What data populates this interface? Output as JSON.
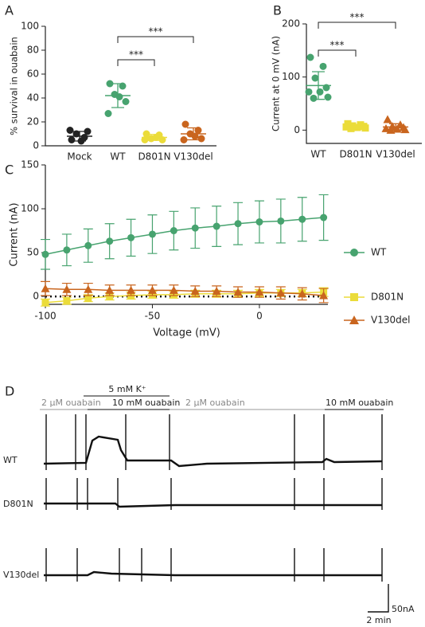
{
  "chart_data": [
    {
      "type": "dot",
      "panel": "A",
      "ylabel": "% survival in ouabain",
      "categories": [
        "Mock",
        "WT",
        "D801N",
        "V130del"
      ],
      "colors": [
        "#222222",
        "#47a36f",
        "#ebdc3a",
        "#c9651e"
      ],
      "markers": [
        "circle",
        "circle",
        "circle",
        "circle"
      ],
      "points": [
        [
          5,
          7,
          10,
          12,
          13,
          4
        ],
        [
          52,
          50,
          43,
          37,
          27,
          41
        ],
        [
          10,
          9,
          6,
          5,
          5,
          7
        ],
        [
          18,
          13,
          10,
          6,
          5,
          8
        ]
      ],
      "means": [
        8,
        42,
        7,
        10
      ],
      "errors": [
        4,
        10,
        2.5,
        5
      ],
      "comparisons": [
        {
          "from": "WT",
          "to": "D801N",
          "label": "***"
        },
        {
          "from": "WT",
          "to": "V130del",
          "label": "***"
        }
      ],
      "ylim": [
        0,
        100
      ],
      "yticks": [
        0,
        20,
        40,
        60,
        80,
        100
      ]
    },
    {
      "type": "dot",
      "panel": "B",
      "ylabel": "Current at 0 mV (nA)",
      "categories": [
        "WT",
        "D801N",
        "V130del"
      ],
      "colors": [
        "#47a36f",
        "#ebdc3a",
        "#c9651e"
      ],
      "markers": [
        "circle",
        "square",
        "triangle"
      ],
      "points": [
        [
          137,
          120,
          98,
          80,
          72,
          72,
          62,
          60
        ],
        [
          12,
          10,
          8,
          7,
          6,
          5,
          4,
          3
        ],
        [
          20,
          10,
          7,
          5,
          3,
          2,
          1,
          0
        ]
      ],
      "means": [
        84,
        7,
        6
      ],
      "errors": [
        26,
        3,
        6
      ],
      "comparisons": [
        {
          "from": "WT",
          "to": "D801N",
          "label": "***"
        },
        {
          "from": "WT",
          "to": "V130del",
          "label": "***"
        }
      ],
      "ylim": [
        -25,
        200
      ],
      "yticks": [
        0,
        100,
        200
      ]
    },
    {
      "type": "line",
      "panel": "C",
      "xlabel": "Voltage (mV)",
      "ylabel": "Current (nA)",
      "x": [
        -100,
        -90,
        -80,
        -70,
        -60,
        -50,
        -40,
        -30,
        -20,
        -10,
        0,
        10,
        20,
        30
      ],
      "series": [
        {
          "name": "WT",
          "color": "#47a36f",
          "marker": "circle",
          "values": [
            48,
            53,
            58,
            63,
            67,
            71,
            75,
            78,
            80,
            83,
            85,
            86,
            88,
            90
          ],
          "errors": [
            17,
            18,
            19,
            20,
            21,
            22,
            22,
            23,
            23,
            24,
            24,
            25,
            25,
            26
          ]
        },
        {
          "name": "D801N",
          "color": "#ebdc3a",
          "marker": "square",
          "values": [
            -7,
            -5,
            -2,
            0,
            1,
            2,
            2,
            3,
            3,
            3,
            4,
            4,
            4,
            5
          ],
          "errors": [
            4,
            4,
            4,
            4,
            4,
            4,
            4,
            4,
            4,
            4,
            4,
            4,
            4,
            5
          ]
        },
        {
          "name": "V130del",
          "color": "#c9651e",
          "marker": "triangle",
          "values": [
            9,
            8,
            8,
            7,
            7,
            7,
            7,
            6,
            6,
            5,
            5,
            4,
            3,
            1
          ],
          "errors": [
            8,
            7,
            7,
            6,
            6,
            6,
            6,
            6,
            6,
            6,
            6,
            7,
            7,
            8
          ]
        }
      ],
      "xlim": [
        -100,
        32
      ],
      "xticks": [
        -100,
        -50,
        0
      ],
      "ylim": [
        -9,
        150
      ],
      "yticks": [
        0,
        50,
        100,
        150
      ]
    }
  ],
  "panel_d": {
    "panel": "D",
    "conditions": [
      "2 μM ouabain",
      "5 mM K⁺",
      "10 mM ouabain",
      "2 μM ouabain",
      "10 mM ouabain"
    ],
    "rows": [
      "WT",
      "D801N",
      "V130del"
    ],
    "scale_y": "50nA",
    "scale_x": "2 min"
  }
}
